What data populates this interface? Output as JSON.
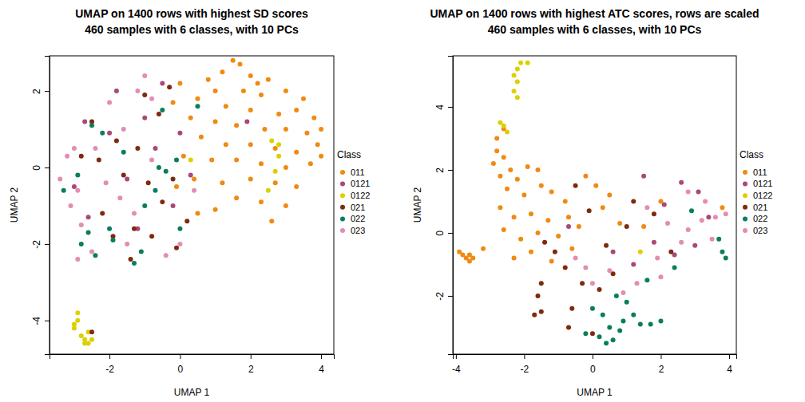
{
  "chart_data": [
    {
      "type": "scatter",
      "title": "UMAP on 1400 rows with highest SD scores",
      "subtitle": "460 samples with 6 classes, with 10 PCs",
      "x_label": "UMAP 1",
      "y_label": "UMAP 2",
      "legend": "right",
      "legend_title": "Class",
      "xlim": [
        -3.7,
        4.36
      ],
      "ylim": [
        -4.88,
        2.92
      ],
      "xticks": [
        -2,
        0,
        2,
        4
      ],
      "yticks": [
        -4,
        -2,
        0,
        2
      ],
      "series": [
        {
          "name": "011",
          "color": "#F08A12",
          "x": [
            1.5,
            1.7,
            1.2,
            2.0,
            2.5,
            0.8,
            1.0,
            1.8,
            2.3,
            3.0,
            3.5,
            0.5,
            1.3,
            2.0,
            2.8,
            3.3,
            3.8,
            0.3,
            1.0,
            1.6,
            2.4,
            3.0,
            3.6,
            4.0,
            0.6,
            1.3,
            2.0,
            2.7,
            3.3,
            3.9,
            0.1,
            0.9,
            1.6,
            2.3,
            3.0,
            3.7,
            0.4,
            1.2,
            2.0,
            2.7,
            3.3,
            1.6,
            2.3,
            3.0,
            2.6,
            -0.2,
            0.0,
            -0.1,
            0.5,
            1.0,
            4.0,
            2.2
          ],
          "values": [
            2.8,
            2.7,
            2.5,
            2.4,
            2.3,
            2.3,
            2.0,
            2.0,
            1.9,
            2.0,
            1.8,
            1.8,
            1.6,
            1.5,
            1.4,
            1.5,
            1.3,
            1.3,
            1.2,
            1.1,
            1.0,
            1.0,
            0.9,
            1.0,
            0.8,
            0.6,
            0.6,
            0.5,
            0.4,
            0.6,
            0.3,
            0.2,
            0.2,
            0.1,
            0.0,
            0.1,
            -0.3,
            -0.4,
            -0.3,
            -0.4,
            -0.5,
            -0.8,
            -0.9,
            -1.0,
            -1.4,
            1.7,
            2.2,
            -0.5,
            -1.2,
            -1.1,
            0.3,
            2.2
          ]
        },
        {
          "name": "0121",
          "color": "#A9487A",
          "x": [
            -2.7,
            -2.0,
            -1.0,
            -0.5,
            -1.5,
            -2.6,
            -0.2,
            0.3,
            -1.2,
            -3.0,
            -0.7,
            1.9,
            -1.8,
            0.0
          ],
          "values": [
            1.2,
            0.9,
            1.3,
            2.2,
            -0.3,
            -1.3,
            -1.0,
            -0.2,
            -1.6,
            -0.5,
            0.5,
            1.2,
            2.0,
            0.9
          ]
        },
        {
          "name": "0122",
          "color": "#DDD000",
          "x": [
            -3.0,
            -2.9,
            -2.8,
            -2.7,
            -2.6,
            -2.5,
            -2.9,
            -2.7,
            -3.0,
            -2.6,
            2.6,
            2.8,
            2.7,
            2.5,
            0.3,
            2.8
          ],
          "values": [
            -4.2,
            -4.0,
            -4.4,
            -4.5,
            -4.3,
            -4.5,
            -3.8,
            -4.6,
            -4.1,
            -4.6,
            0.7,
            0.6,
            -0.1,
            -0.6,
            0.2,
            0.3
          ]
        },
        {
          "name": "021",
          "color": "#7F2A10",
          "x": [
            -2.5,
            -1.8,
            -1.2,
            -0.6,
            -0.3,
            -1.6,
            -0.9,
            -0.2,
            -2.2,
            -1.3,
            -0.8,
            -1.4,
            -2.8,
            -0.5,
            -1.0,
            -2.3,
            0.2,
            -2.5,
            -0.1,
            -1.9
          ],
          "values": [
            1.2,
            0.7,
            0.5,
            1.4,
            2.1,
            -0.2,
            -0.4,
            -0.3,
            -1.2,
            -1.6,
            -1.8,
            -2.4,
            0.3,
            -0.9,
            1.9,
            0.2,
            -1.4,
            -4.3,
            -2.1,
            -1.8
          ]
        },
        {
          "name": "022",
          "color": "#0A7E5A",
          "x": [
            -2.5,
            -2.2,
            -2.9,
            -3.3,
            -2.6,
            -2.0,
            -1.9,
            -2.4,
            -1.3,
            -1.1,
            -0.6,
            -0.4,
            -0.5,
            0.5,
            -0.1,
            -1.6,
            -0.7,
            -2.8,
            -1.0,
            0.0
          ],
          "values": [
            1.1,
            0.9,
            -0.2,
            -0.6,
            -1.7,
            -1.6,
            -1.9,
            -2.3,
            -2.5,
            -2.2,
            0.0,
            -0.1,
            1.5,
            1.6,
            0.2,
            0.4,
            -0.6,
            -2.0,
            -1.0,
            -1.6
          ]
        },
        {
          "name": "023",
          "color": "#E38DB3",
          "x": [
            -3.0,
            -3.2,
            -2.9,
            -3.1,
            -2.8,
            -2.5,
            -2.9,
            -2.4,
            -2.0,
            -1.6,
            -1.2,
            -0.8,
            -1.7,
            -2.1,
            -1.3,
            -1.5,
            -0.4,
            0.0,
            -0.8,
            0.4,
            -1.0,
            -3.4
          ],
          "values": [
            0.5,
            0.3,
            -0.6,
            -1.0,
            -1.5,
            -2.2,
            -2.4,
            0.5,
            1.7,
            1.0,
            2.0,
            1.8,
            -0.8,
            -0.4,
            -1.2,
            -2.0,
            -2.3,
            -2.0,
            0.2,
            -0.6,
            2.4,
            -0.3
          ]
        }
      ]
    },
    {
      "type": "scatter",
      "title": "UMAP on 1400 rows with highest ATC scores, rows are scaled",
      "subtitle": "460 samples with 6 classes, with 10 PCs",
      "x_label": "UMAP 1",
      "y_label": "UMAP 2",
      "legend": "right",
      "legend_title": "Class",
      "xlim": [
        -4.09,
        4.21
      ],
      "ylim": [
        -3.85,
        5.62
      ],
      "xticks": [
        -4,
        -2,
        0,
        2,
        4
      ],
      "yticks": [
        -2,
        0,
        2,
        4
      ],
      "series": [
        {
          "name": "011",
          "color": "#F08A12",
          "x": [
            -3.9,
            -3.8,
            -3.7,
            -3.6,
            -3.5,
            -3.6,
            -2.8,
            -2.6,
            -2.9,
            -2.4,
            -2.7,
            -2.2,
            -1.9,
            -1.6,
            -2.5,
            -2.0,
            -1.5,
            -1.2,
            -0.8,
            -0.2,
            0.1,
            -2.7,
            -2.3,
            -1.8,
            -1.3,
            -0.7,
            0.3,
            -2.6,
            -2.1,
            -1.6,
            -1.0,
            -0.4,
            -2.3,
            -1.8,
            -1.2,
            -0.6,
            0.5,
            0.8,
            -2.8,
            -2.6,
            1.5,
            2.0,
            -3.2,
            3.8
          ],
          "values": [
            -0.6,
            -0.7,
            -0.8,
            -0.9,
            -0.8,
            -0.7,
            2.6,
            2.4,
            2.2,
            2.0,
            1.8,
            1.7,
            2.1,
            2.0,
            1.4,
            1.2,
            1.5,
            1.3,
            1.0,
            1.8,
            1.5,
            0.8,
            0.5,
            0.6,
            0.4,
            0.5,
            0.8,
            0.1,
            -0.2,
            0.0,
            -0.1,
            0.2,
            -0.8,
            -0.6,
            -0.9,
            -0.5,
            1.2,
            0.3,
            3.0,
            3.3,
            0.2,
            1.0,
            -0.5,
            0.8
          ]
        },
        {
          "name": "0121",
          "color": "#A9487A",
          "x": [
            1.5,
            2.6,
            3.1,
            2.1,
            3.4,
            1.8,
            0.6,
            1.2,
            2.4,
            3.0,
            -0.7
          ],
          "values": [
            1.8,
            1.6,
            1.3,
            0.9,
            0.5,
            -0.3,
            -0.6,
            -1.0,
            -0.7,
            -0.4,
            0.2
          ]
        },
        {
          "name": "0122",
          "color": "#DDD000",
          "x": [
            -2.1,
            -1.9,
            -2.2,
            -2.3,
            -2.2,
            -2.3,
            -2.2,
            -2.6,
            -2.5,
            -2.7,
            1.4
          ],
          "values": [
            5.4,
            5.4,
            5.2,
            5.0,
            4.8,
            4.5,
            4.3,
            3.4,
            3.2,
            3.5,
            -0.6
          ]
        },
        {
          "name": "021",
          "color": "#7F2A10",
          "x": [
            -0.5,
            -0.1,
            -1.4,
            -1.5,
            -1.6,
            -1.7,
            -1.5,
            -0.8,
            -0.3,
            0.2,
            -0.6,
            0.0,
            1.0,
            1.2,
            0.4,
            1.8,
            2.3,
            0.6,
            -1.1,
            -0.7
          ],
          "values": [
            1.5,
            0.7,
            -0.3,
            -1.6,
            -2.0,
            -2.6,
            -2.5,
            -1.1,
            -1.6,
            -1.8,
            -2.4,
            -3.2,
            0.2,
            1.0,
            -0.4,
            0.6,
            -0.6,
            -1.3,
            -0.6,
            -3.0
          ]
        },
        {
          "name": "022",
          "color": "#0A7E5A",
          "x": [
            0.0,
            0.3,
            0.5,
            0.6,
            0.8,
            0.9,
            1.2,
            1.4,
            1.7,
            2.0,
            1.0,
            -0.2,
            0.2,
            0.7,
            1.6,
            2.4,
            3.7,
            3.8,
            3.9,
            2.9,
            0.4
          ],
          "values": [
            -2.4,
            -2.6,
            -3.0,
            -3.4,
            -3.1,
            -2.8,
            -2.6,
            -2.9,
            -2.9,
            -2.8,
            -2.2,
            -3.2,
            -3.3,
            -2.0,
            -1.5,
            -1.1,
            -0.2,
            -0.6,
            -0.8,
            0.7,
            -3.5
          ]
        },
        {
          "name": "023",
          "color": "#E38DB3",
          "x": [
            3.9,
            3.6,
            3.2,
            2.8,
            3.5,
            2.6,
            2.2,
            1.9,
            1.3,
            0.9,
            0.0,
            -0.2,
            0.5,
            1.6,
            2.8,
            3.3,
            2.0,
            -0.5
          ],
          "values": [
            0.6,
            0.5,
            0.4,
            0.1,
            -0.2,
            -0.3,
            0.3,
            -0.8,
            -1.6,
            -1.9,
            -1.6,
            -1.1,
            -1.2,
            0.8,
            1.3,
            1.0,
            -1.4,
            -0.8
          ]
        }
      ]
    }
  ]
}
